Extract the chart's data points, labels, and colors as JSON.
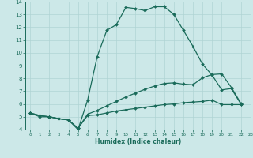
{
  "xlabel": "Humidex (Indice chaleur)",
  "ylabel": "",
  "bg_color": "#cce8e8",
  "grid_color": "#b0d4d4",
  "line_color": "#1a6b5a",
  "xlim": [
    -0.5,
    23
  ],
  "ylim": [
    4,
    14
  ],
  "xticks": [
    0,
    1,
    2,
    3,
    4,
    5,
    6,
    7,
    8,
    9,
    10,
    11,
    12,
    13,
    14,
    15,
    16,
    17,
    18,
    19,
    20,
    21,
    22,
    23
  ],
  "yticks": [
    4,
    5,
    6,
    7,
    8,
    9,
    10,
    11,
    12,
    13,
    14
  ],
  "line1_x": [
    0,
    1,
    2,
    3,
    4,
    5,
    6,
    7,
    8,
    9,
    10,
    11,
    12,
    13,
    14,
    15,
    16,
    17,
    18,
    19,
    20,
    21,
    22
  ],
  "line1_y": [
    5.3,
    5.1,
    5.0,
    4.85,
    4.75,
    4.0,
    6.3,
    9.7,
    11.75,
    12.2,
    13.55,
    13.45,
    13.3,
    13.6,
    13.6,
    13.0,
    11.75,
    10.5,
    9.1,
    8.25,
    7.1,
    7.2,
    6.0
  ],
  "line2_x": [
    0,
    1,
    2,
    3,
    4,
    5,
    6,
    7,
    8,
    9,
    10,
    11,
    12,
    13,
    14,
    15,
    16,
    17,
    18,
    19,
    20,
    21,
    22
  ],
  "line2_y": [
    5.3,
    5.1,
    5.0,
    4.85,
    4.75,
    4.1,
    5.2,
    5.5,
    5.85,
    6.2,
    6.55,
    6.85,
    7.15,
    7.4,
    7.6,
    7.65,
    7.55,
    7.5,
    8.05,
    8.3,
    8.35,
    7.3,
    6.05
  ],
  "line3_x": [
    0,
    1,
    2,
    3,
    4,
    5,
    6,
    7,
    8,
    9,
    10,
    11,
    12,
    13,
    14,
    15,
    16,
    17,
    18,
    19,
    20,
    21,
    22
  ],
  "line3_y": [
    5.3,
    5.0,
    5.0,
    4.85,
    4.75,
    4.1,
    5.1,
    5.15,
    5.3,
    5.45,
    5.55,
    5.65,
    5.75,
    5.85,
    5.95,
    6.0,
    6.1,
    6.15,
    6.2,
    6.3,
    5.95,
    5.95,
    5.95
  ],
  "marker_size": 2.0,
  "line_width": 0.9
}
